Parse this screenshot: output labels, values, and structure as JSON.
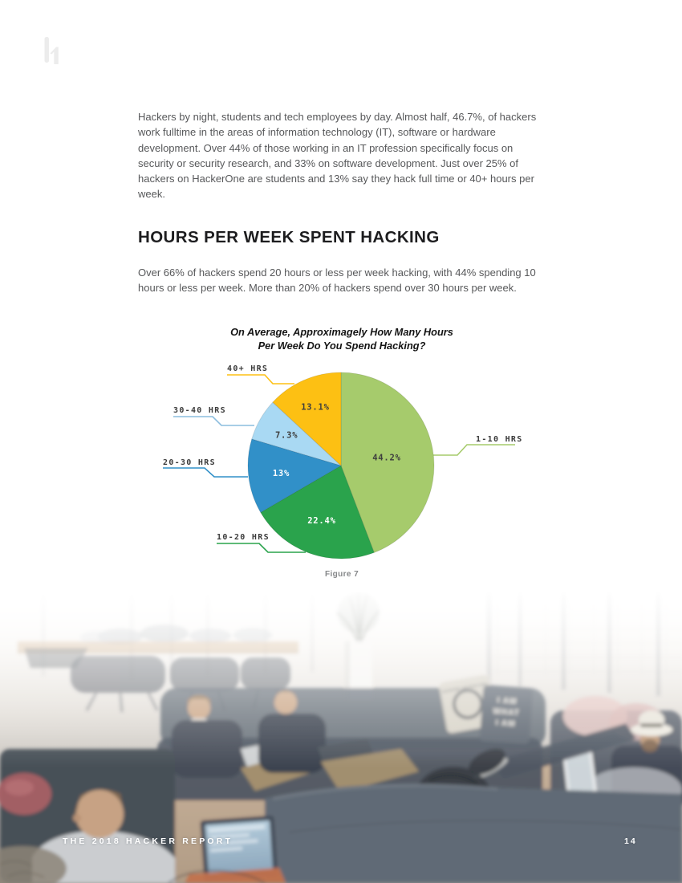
{
  "article": {
    "intro": "Hackers by night, students and tech employees by day. Almost half, 46.7%, of hackers work fulltime in the areas of information technology (IT), software or hardware development. Over 44% of those working in an IT profession specifically focus on security or security research, and 33% on software development. Just over 25% of hackers on HackerOne are students and 13% say they hack full time or 40+ hours per week.",
    "section_heading": "HOURS PER WEEK SPENT HACKING",
    "section_body": "Over 66% of hackers spend 20 hours or less per week hacking, with 44% spending 10 hours or less per week. More than 20% of hackers spend over 30 hours per week."
  },
  "figure": {
    "title_line1": "On Average, Approximagely How Many Hours",
    "title_line2": "Per Week Do You Spend Hacking?",
    "caption": "Figure 7"
  },
  "chart_data": {
    "type": "pie",
    "title": "On Average, Approximagely How Many Hours Per Week Do You Spend Hacking?",
    "start_angle": "top, clockwise",
    "slices": [
      {
        "label": "1-10 HRS",
        "value": 44.2,
        "display": "44.2%",
        "color": "#a6cb6c",
        "leader_color": "#a6cb6c",
        "pct_color": "#3e3e3e"
      },
      {
        "label": "10-20 HRS",
        "value": 22.4,
        "display": "22.4%",
        "color": "#2aa34c",
        "leader_color": "#2aa34c",
        "pct_color": "#ffffff"
      },
      {
        "label": "20-30 HRS",
        "value": 13,
        "display": "13%",
        "color": "#3190c8",
        "leader_color": "#3190c8",
        "pct_color": "#ffffff"
      },
      {
        "label": "30-40 HRS",
        "value": 7.3,
        "display": "7.3%",
        "color": "#a9d9f3",
        "leader_color": "#8bbdde",
        "pct_color": "#3e3e3e"
      },
      {
        "label": "40+ HRS",
        "value": 13.1,
        "display": "13.1%",
        "color": "#fdc013",
        "leader_color": "#fdc013",
        "pct_color": "#3e3e3e"
      }
    ]
  },
  "photo": {
    "pillow_text_lines": [
      "I AM",
      "WHAT",
      "I AM"
    ],
    "pillow_ring_text": "RANGER ADVENTURE"
  },
  "footer": {
    "report_title": "THE 2018 HACKER REPORT",
    "page_number": "14"
  }
}
